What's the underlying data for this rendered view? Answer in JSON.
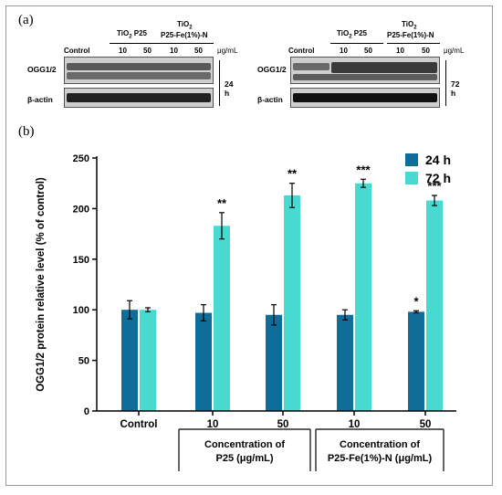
{
  "panel_labels": {
    "a": "(a)",
    "b": "(b)"
  },
  "blot": {
    "left": {
      "col_control": "Control",
      "group1_line1": "TiO",
      "group1_sub": "2",
      "group1_line2": " P25",
      "group2_line1": "TiO",
      "group2_sub": "2",
      "group2_line2": "P25-Fe(1%)-N",
      "doses": [
        "10",
        "50",
        "10",
        "50"
      ],
      "unit": "μg/mL",
      "row1": "OGG1/2",
      "row2": "β-actin",
      "time": "24 h"
    },
    "right": {
      "col_control": "Control",
      "group1_line1": "TiO",
      "group1_sub": "2",
      "group1_line2": " P25",
      "group2_line1": "TiO",
      "group2_sub": "2",
      "group2_line2": "P25-Fe(1%)-N",
      "doses": [
        "10",
        "50",
        "10",
        "50"
      ],
      "unit": "μg/mL",
      "row1": "OGG1/2",
      "row2": "β-actin",
      "time": "72 h"
    }
  },
  "colors": {
    "series_24h": "#0f6d99",
    "series_72h": "#48d9d1"
  },
  "chart_data": {
    "type": "bar",
    "ylabel": "OGG1/2 protein relative level (% of control)",
    "ylim": [
      0,
      250
    ],
    "yticks": [
      "0",
      "50",
      "100",
      "150",
      "200",
      "250"
    ],
    "categories": [
      "Control",
      "10",
      "50",
      "10",
      "50"
    ],
    "series": [
      {
        "name": "24 h",
        "values": [
          100,
          97,
          95,
          95,
          98
        ],
        "errors": [
          9,
          8,
          10,
          5,
          1
        ],
        "significance": [
          "",
          "",
          "",
          "",
          "*"
        ]
      },
      {
        "name": "72 h",
        "values": [
          100,
          183,
          213,
          225,
          208
        ],
        "errors": [
          2,
          13,
          12,
          4,
          5
        ],
        "significance": [
          "",
          "**",
          "**",
          "***",
          "***"
        ]
      }
    ],
    "group_labels": [
      {
        "line1": "Concentration of",
        "line2": "P25 (μg/mL)"
      },
      {
        "line1": "Concentration of",
        "line2": "P25-Fe(1%)-N (μg/mL)"
      }
    ],
    "legend_position": "top-right"
  }
}
